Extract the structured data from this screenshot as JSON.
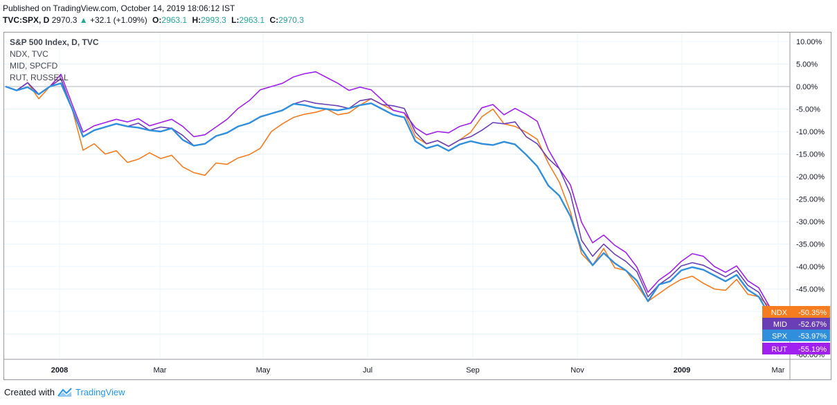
{
  "header": {
    "published": "Published on TradingView.com, October 14, 2019 18:06:12 IST",
    "symbol": "TVC:SPX, D",
    "price": "2970.3",
    "change": "+32.1 (+1.09%)",
    "o_label": "O:",
    "o_value": "2963.1",
    "h_label": "H:",
    "h_value": "2993.3",
    "l_label": "L:",
    "l_value": "2963.1",
    "c_label": "C:",
    "c_value": "2970.3"
  },
  "legend": {
    "main": "S&P 500 Index, D, TVC",
    "items": [
      "NDX, TVC",
      "MID, SPCFD",
      "RUT, RUSSELL"
    ]
  },
  "footer": {
    "created": "Created with",
    "brand": "TradingView"
  },
  "colors": {
    "NDX": "#f57c1f",
    "MID": "#6a3fb5",
    "SPX": "#2f8fdd",
    "RUT": "#a020f0",
    "zero_line": "#b2b5be",
    "grid": "#e8f4fb"
  },
  "chart_data": {
    "type": "line",
    "y_unit": "%",
    "ylim": [
      -60,
      10
    ],
    "y_ticks": [
      "10.00%",
      "5.00%",
      "0.00%",
      "-5.00%",
      "-10.00%",
      "-15.00%",
      "-20.00%",
      "-25.00%",
      "-30.00%",
      "-35.00%",
      "-40.00%",
      "-45.00%",
      "-60.00%"
    ],
    "x_ticks": [
      "2008",
      "Mar",
      "May",
      "Jul",
      "Sep",
      "Nov",
      "2009",
      "Mar"
    ],
    "grid": true,
    "series": [
      {
        "name": "NDX",
        "last_label": "-50.35%",
        "values": [
          0,
          -1,
          1,
          -3,
          0,
          2,
          -5,
          -14,
          -13,
          -15,
          -14,
          -17,
          -16,
          -15,
          -16,
          -15,
          -18,
          -19,
          -20,
          -17,
          -17,
          -16,
          -15,
          -14,
          -10,
          -8,
          -7,
          -6,
          -6,
          -5,
          -6,
          -6,
          -4,
          -3,
          -4,
          -5,
          -6,
          -11,
          -13,
          -12,
          -13,
          -12,
          -10,
          -7,
          -5,
          -8,
          -9,
          -10,
          -12,
          -17,
          -21,
          -28,
          -37,
          -40,
          -36,
          -40,
          -41,
          -44,
          -48,
          -46,
          -44,
          -43,
          -42,
          -44,
          -45,
          -45,
          -43,
          -46,
          -47,
          -49,
          -50.35
        ]
      },
      {
        "name": "MID",
        "values": [
          0,
          -1,
          1,
          -2,
          0,
          2,
          -5,
          -11,
          -10,
          -9,
          -8,
          -9,
          -8,
          -10,
          -9,
          -9,
          -11,
          -13,
          -13,
          -11,
          -10,
          -9,
          -8,
          -7,
          -6,
          -5,
          -4,
          -3,
          -4,
          -4,
          -4,
          -5,
          -3,
          -3,
          -4,
          -4,
          -5,
          -10,
          -13,
          -12,
          -13,
          -12,
          -11,
          -10,
          -8,
          -8,
          -8,
          -11,
          -13,
          -16,
          -18,
          -24,
          -34,
          -38,
          -35,
          -37,
          -39,
          -41,
          -47,
          -44,
          -42,
          -40,
          -39,
          -40,
          -41,
          -42,
          -41,
          -44,
          -46,
          -50,
          -52.67
        ]
      },
      {
        "name": "SPX",
        "values": [
          0,
          -1,
          0,
          -2,
          0,
          1,
          -5,
          -11,
          -10,
          -9,
          -8,
          -9,
          -9,
          -10,
          -10,
          -9,
          -12,
          -13,
          -13,
          -11,
          -10,
          -9,
          -8,
          -7,
          -6,
          -5,
          -4,
          -4,
          -5,
          -5,
          -5,
          -5,
          -4,
          -4,
          -5,
          -6,
          -7,
          -12,
          -14,
          -13,
          -14,
          -13,
          -12,
          -13,
          -13,
          -12,
          -13,
          -15,
          -18,
          -22,
          -24,
          -29,
          -36,
          -40,
          -37,
          -39,
          -41,
          -43,
          -48,
          -44,
          -43,
          -41,
          -40,
          -41,
          -42,
          -43,
          -42,
          -45,
          -47,
          -51,
          -53.97
        ]
      },
      {
        "name": "RUT",
        "values": [
          0,
          -1,
          1,
          -2,
          0,
          3,
          -4,
          -10,
          -9,
          -8,
          -7,
          -8,
          -7,
          -9,
          -8,
          -7,
          -9,
          -11,
          -11,
          -9,
          -7,
          -5,
          -3,
          -1,
          0,
          1,
          2,
          3,
          3,
          2,
          1,
          -1,
          0,
          -1,
          -3,
          -5,
          -6,
          -9,
          -11,
          -10,
          -10,
          -9,
          -8,
          -5,
          -4,
          -6,
          -5,
          -6,
          -8,
          -14,
          -18,
          -22,
          -30,
          -35,
          -33,
          -35,
          -37,
          -40,
          -46,
          -43,
          -41,
          -39,
          -37,
          -38,
          -40,
          -41,
          -40,
          -43,
          -45,
          -49,
          -55.19
        ]
      }
    ],
    "last_labels": [
      {
        "name": "NDX",
        "value": "-50.35%"
      },
      {
        "name": "MID",
        "value": "-52.67%"
      },
      {
        "name": "SPX",
        "value": "-53.97%"
      },
      {
        "name": "RUT",
        "value": "-55.19%"
      }
    ]
  }
}
